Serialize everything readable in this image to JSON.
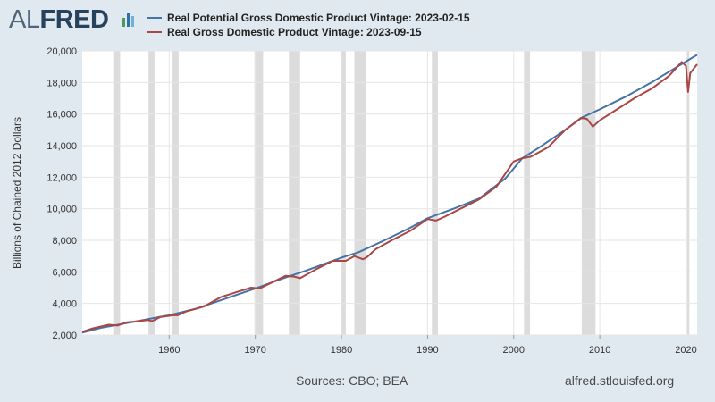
{
  "brand": {
    "logo_al": "AL",
    "logo_fred": "FRED"
  },
  "footer": {
    "sources": "Sources: CBO; BEA",
    "url": "alfred.stlouisfed.org"
  },
  "colors": {
    "potential": "#4572a7",
    "real": "#aa4643",
    "recession": "#dcdcdc",
    "grid": "#e6e6e6"
  },
  "chart_data": {
    "type": "line",
    "ylabel": "Billions of Chained 2012 Dollars",
    "xlabel": "",
    "xlim": [
      1949.9,
      2021.3
    ],
    "ylim": [
      2000,
      20000
    ],
    "yticks": [
      2000,
      4000,
      6000,
      8000,
      10000,
      12000,
      14000,
      16000,
      18000,
      20000
    ],
    "ytick_labels": [
      "2,000",
      "4,000",
      "6,000",
      "8,000",
      "10,000",
      "12,000",
      "14,000",
      "16,000",
      "18,000",
      "20,000"
    ],
    "xticks": [
      1960,
      1970,
      1980,
      1990,
      2000,
      2010,
      2020
    ],
    "xtick_labels": [
      "1960",
      "1970",
      "1980",
      "1990",
      "2000",
      "2010",
      "2020"
    ],
    "grid": true,
    "legend_position": "top",
    "recessions": [
      [
        1953.5,
        1954.3
      ],
      [
        1957.6,
        1958.3
      ],
      [
        1960.3,
        1961.1
      ],
      [
        1969.9,
        1970.9
      ],
      [
        1973.9,
        1975.2
      ],
      [
        1980.0,
        1980.5
      ],
      [
        1981.5,
        1982.9
      ],
      [
        1990.5,
        1991.2
      ],
      [
        2001.2,
        2001.9
      ],
      [
        2007.9,
        2009.5
      ],
      [
        2020.1,
        2020.4
      ]
    ],
    "series": [
      {
        "name": "Real Potential Gross Domestic Product Vintage: 2023-02-15",
        "color": "#4572a7",
        "x": [
          1949.9,
          1952,
          1955,
          1958,
          1960,
          1963,
          1966,
          1970,
          1973,
          1976,
          1980,
          1982,
          1985,
          1988,
          1990,
          1993,
          1996,
          1999,
          2001,
          2003,
          2006,
          2008,
          2010,
          2013,
          2016,
          2019,
          2021.3
        ],
        "values": [
          2150,
          2450,
          2750,
          3050,
          3250,
          3650,
          4200,
          4950,
          5550,
          6100,
          6900,
          7250,
          8000,
          8800,
          9400,
          10000,
          10650,
          11900,
          13200,
          13900,
          15000,
          15800,
          16300,
          17100,
          18000,
          19000,
          19750
        ]
      },
      {
        "name": "Real Gross Domestic Product Vintage: 2023-09-15",
        "color": "#aa4643",
        "x": [
          1949.9,
          1951,
          1953,
          1954,
          1955,
          1956,
          1957.5,
          1958,
          1959,
          1960.5,
          1961,
          1962,
          1964,
          1966,
          1968,
          1969.5,
          1970.5,
          1972,
          1973.5,
          1974.5,
          1975.2,
          1977,
          1979,
          1980.5,
          1981.5,
          1982.5,
          1983,
          1984,
          1986,
          1988,
          1990,
          1991,
          1992,
          1994,
          1996,
          1998,
          2000,
          2001,
          2002,
          2004,
          2006,
          2007.8,
          2008.5,
          2009.2,
          2010,
          2012,
          2014,
          2016,
          2018,
          2019.5,
          2020,
          2020.25,
          2020.5,
          2021.3
        ],
        "values": [
          2200,
          2400,
          2650,
          2600,
          2800,
          2850,
          2950,
          2880,
          3150,
          3250,
          3250,
          3500,
          3800,
          4400,
          4750,
          5000,
          4950,
          5350,
          5750,
          5700,
          5600,
          6150,
          6700,
          6700,
          7000,
          6800,
          6950,
          7450,
          8050,
          8600,
          9350,
          9250,
          9500,
          10050,
          10600,
          11400,
          13000,
          13200,
          13300,
          13900,
          15000,
          15750,
          15700,
          15200,
          15600,
          16300,
          17000,
          17600,
          18400,
          19300,
          19050,
          17400,
          18600,
          19150
        ]
      }
    ]
  }
}
